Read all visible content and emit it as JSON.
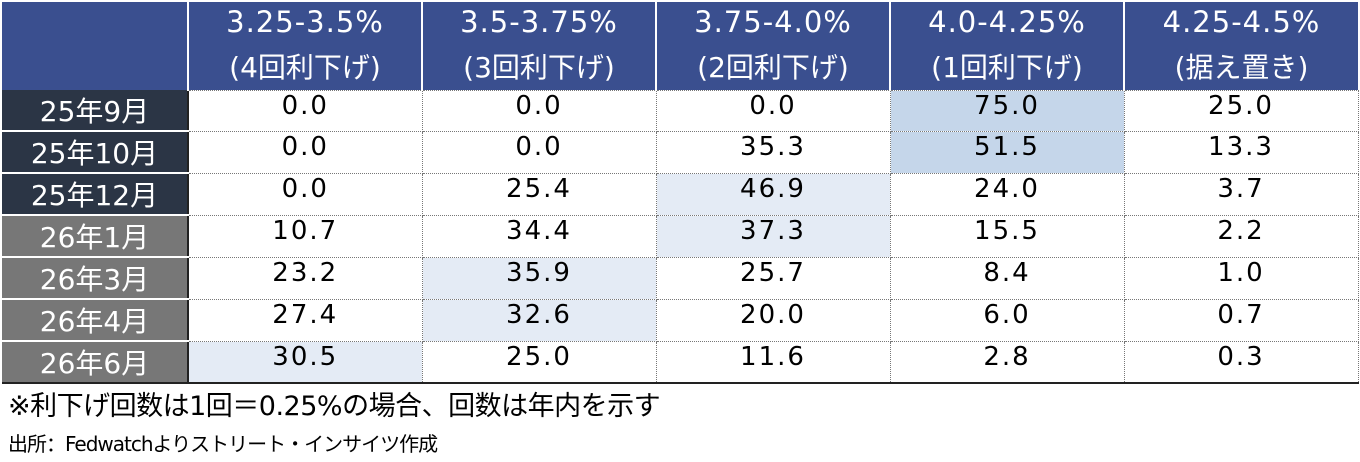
{
  "chart_data": {
    "type": "table",
    "columns": [
      {
        "range": "3.25-3.5%",
        "note": "(4回利下げ)"
      },
      {
        "range": "3.5-3.75%",
        "note": "(3回利下げ)"
      },
      {
        "range": "3.75-4.0%",
        "note": "(2回利下げ)"
      },
      {
        "range": "4.0-4.25%",
        "note": "(1回利下げ)"
      },
      {
        "range": "4.25-4.5%",
        "note": "(据え置き)"
      }
    ],
    "rows": [
      {
        "label": "25年9月",
        "values": [
          "0.0",
          "0.0",
          "0.0",
          "75.0",
          "25.0"
        ],
        "highlight_col": 3,
        "highlight": "strong",
        "label_tone": "dark"
      },
      {
        "label": "25年10月",
        "values": [
          "0.0",
          "0.0",
          "35.3",
          "51.5",
          "13.3"
        ],
        "highlight_col": 3,
        "highlight": "strong",
        "label_tone": "dark"
      },
      {
        "label": "25年12月",
        "values": [
          "0.0",
          "25.4",
          "46.9",
          "24.0",
          "3.7"
        ],
        "highlight_col": 2,
        "highlight": "light",
        "label_tone": "dark"
      },
      {
        "label": "26年1月",
        "values": [
          "10.7",
          "34.4",
          "37.3",
          "15.5",
          "2.2"
        ],
        "highlight_col": 2,
        "highlight": "light",
        "label_tone": "gray"
      },
      {
        "label": "26年3月",
        "values": [
          "23.2",
          "35.9",
          "25.7",
          "8.4",
          "1.0"
        ],
        "highlight_col": 1,
        "highlight": "light",
        "label_tone": "gray"
      },
      {
        "label": "26年4月",
        "values": [
          "27.4",
          "32.6",
          "20.0",
          "6.0",
          "0.7"
        ],
        "highlight_col": 1,
        "highlight": "light",
        "label_tone": "gray"
      },
      {
        "label": "26年6月",
        "values": [
          "30.5",
          "25.0",
          "11.6",
          "2.8",
          "0.3"
        ],
        "highlight_col": 0,
        "highlight": "light",
        "label_tone": "gray"
      }
    ],
    "colors": {
      "header_bg": "#3a4f8f",
      "label_dark": "#2b3545",
      "label_gray": "#777777",
      "highlight_strong": "#c5d6ea",
      "highlight_light": "#e4ebf5"
    }
  },
  "footnote": "※利下げ回数は1回＝0.25%の場合、回数は年内を示す",
  "source": "出所：Fedwatchよりストリート・インサイツ作成"
}
